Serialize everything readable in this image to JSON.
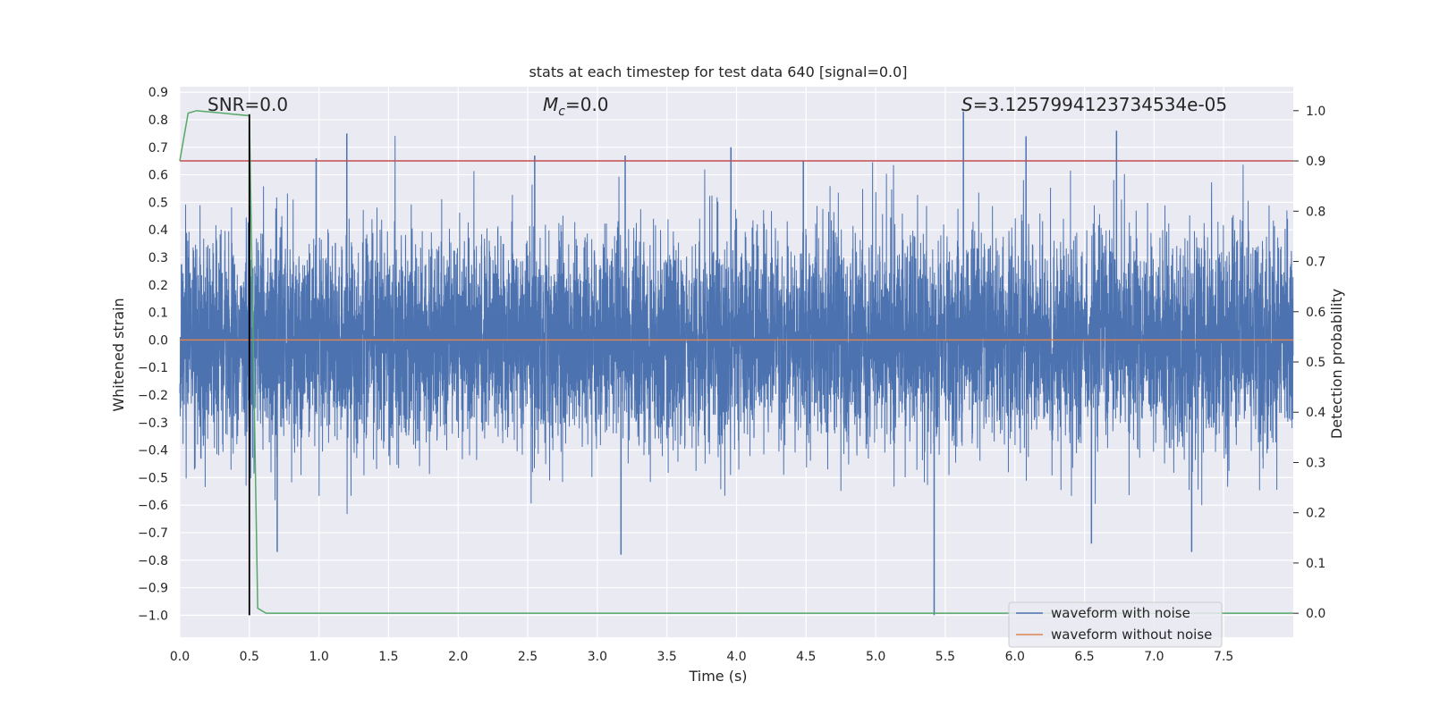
{
  "chart_data": {
    "type": "line",
    "title": "stats at each timestep for test data 640 [signal=0.0]",
    "xlabel": "Time (s)",
    "ylabel": "Whitened strain",
    "ylabel_right": "Detection probability",
    "xlim": [
      0.0,
      8.0
    ],
    "ylim": [
      -1.08,
      0.92
    ],
    "ylim_right": [
      -0.0477,
      1.0477
    ],
    "x_ticks": [
      "0.0",
      "0.5",
      "1.0",
      "1.5",
      "2.0",
      "2.5",
      "3.0",
      "3.5",
      "4.0",
      "4.5",
      "5.0",
      "5.5",
      "6.0",
      "6.5",
      "7.0",
      "7.5"
    ],
    "y_ticks": [
      "0.9",
      "0.8",
      "0.7",
      "0.6",
      "0.5",
      "0.4",
      "0.3",
      "0.2",
      "0.1",
      "0.0",
      "−0.1",
      "−0.2",
      "−0.3",
      "−0.4",
      "−0.5",
      "−0.6",
      "−0.7",
      "−0.8",
      "−0.9",
      "−1.0"
    ],
    "y_right_ticks": [
      "1.0",
      "0.9",
      "0.8",
      "0.7",
      "0.6",
      "0.5",
      "0.4",
      "0.3",
      "0.2",
      "0.1",
      "0.0"
    ],
    "annotations": {
      "snr": "SNR=0.0",
      "mc_symbol": "M",
      "mc_subscript": "c",
      "mc_value": "=0.0",
      "s_symbol": "S",
      "s_value": "=3.1257994123734534e-05"
    },
    "series": [
      {
        "name": "waveform with noise",
        "color": "#4c72b0",
        "axis": "left",
        "description": "dense whitened noise, samples approx in [-1.0, 0.83]",
        "notable_peaks": [
          {
            "x": 0.98,
            "y": 0.66
          },
          {
            "x": 1.2,
            "y": 0.75
          },
          {
            "x": 2.55,
            "y": 0.67
          },
          {
            "x": 3.2,
            "y": 0.67
          },
          {
            "x": 3.96,
            "y": 0.7
          },
          {
            "x": 4.48,
            "y": 0.65
          },
          {
            "x": 5.63,
            "y": 0.83
          },
          {
            "x": 6.08,
            "y": 0.74
          },
          {
            "x": 6.73,
            "y": 0.76
          },
          {
            "x": 0.7,
            "y": -0.77
          },
          {
            "x": 3.17,
            "y": -0.78
          },
          {
            "x": 5.42,
            "y": -1.0
          },
          {
            "x": 6.55,
            "y": -0.74
          },
          {
            "x": 7.27,
            "y": -0.77
          }
        ]
      },
      {
        "name": "waveform without noise",
        "color": "#dd8452",
        "axis": "left",
        "x": [
          0.0,
          8.0
        ],
        "y": [
          0.0,
          0.0
        ]
      },
      {
        "name": "detection probability",
        "color": "#55a868",
        "axis": "right",
        "x": [
          0.0,
          0.06,
          0.12,
          0.5,
          0.56,
          0.62,
          8.0
        ],
        "y": [
          0.9,
          0.995,
          1.0,
          0.99,
          0.01,
          0.0,
          0.0
        ]
      }
    ],
    "threshold": {
      "value": 0.9,
      "axis": "right",
      "color": "#c44e52"
    },
    "marker_line": {
      "x": 0.5,
      "y_from": -1.0,
      "y_to": 0.82,
      "color": "#000000"
    },
    "legend": {
      "location": "lower-right",
      "entries": [
        {
          "label": "waveform with noise",
          "color": "#4c72b0"
        },
        {
          "label": "waveform without noise",
          "color": "#dd8452"
        }
      ]
    },
    "grid": true,
    "background_color": "#eaeaf2",
    "noise_seed": 640
  }
}
